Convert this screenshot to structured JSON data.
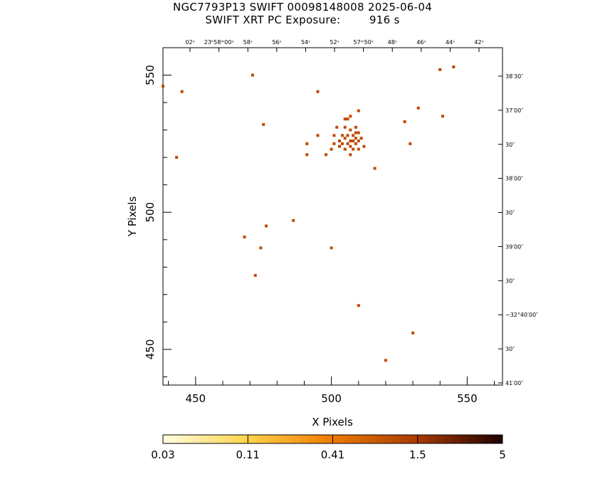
{
  "header": {
    "title_line1": "NGC7793P13 SWIFT 00098148008 2025-06-04",
    "title_line2": "SWIFT XRT PC Exposure:        916 s"
  },
  "chart_data": {
    "type": "scatter",
    "xlabel": "X Pixels",
    "ylabel": "Y Pixels",
    "xlim": [
      438,
      563
    ],
    "ylim": [
      437,
      560
    ],
    "x_ticks": [
      450,
      500,
      550
    ],
    "y_ticks": [
      450,
      500,
      550
    ],
    "ra_labels": [
      "02ˢ",
      "23ʰ58ᵐ00ˢ",
      "58ˢ",
      "56ˢ",
      "54ˢ",
      "52ˢ",
      "57ᵐ50ˢ",
      "48ˢ",
      "46ˢ",
      "44ˢ",
      "42ˢ"
    ],
    "dec_labels": [
      "38′30″",
      "37′00″",
      "30″",
      "38′00″",
      "30″",
      "39′00″",
      "30″",
      "−32°40′00″",
      "30″",
      "41′00″"
    ],
    "colorbar": {
      "tick_labels": [
        "0.03",
        "0.11",
        "0.41",
        "1.5",
        "5"
      ],
      "colors": [
        "#ffffe0",
        "#ffd24a",
        "#ee7a00",
        "#a83a00",
        "#1e0000"
      ]
    },
    "point_color": "#c04a00",
    "points": [
      [
        438,
        546
      ],
      [
        445,
        544
      ],
      [
        443,
        520
      ],
      [
        471,
        550
      ],
      [
        475,
        532
      ],
      [
        495,
        544
      ],
      [
        491,
        525
      ],
      [
        491,
        521
      ],
      [
        495,
        528
      ],
      [
        498,
        521
      ],
      [
        500,
        523
      ],
      [
        501,
        528
      ],
      [
        502,
        531
      ],
      [
        503,
        524
      ],
      [
        504,
        528
      ],
      [
        505,
        531
      ],
      [
        505,
        534
      ],
      [
        506,
        534
      ],
      [
        507,
        530
      ],
      [
        507,
        535
      ],
      [
        503,
        526
      ],
      [
        504,
        525
      ],
      [
        505,
        527
      ],
      [
        506,
        525
      ],
      [
        507,
        526
      ],
      [
        508,
        526
      ],
      [
        509,
        527
      ],
      [
        510,
        526
      ],
      [
        506,
        528
      ],
      [
        508,
        528
      ],
      [
        509,
        529
      ],
      [
        510,
        529
      ],
      [
        507,
        524
      ],
      [
        508,
        523
      ],
      [
        509,
        525
      ],
      [
        510,
        523
      ],
      [
        511,
        527
      ],
      [
        512,
        524
      ],
      [
        507,
        521
      ],
      [
        509,
        531
      ],
      [
        510,
        537
      ],
      [
        505,
        523
      ],
      [
        501,
        525
      ],
      [
        516,
        516
      ],
      [
        527,
        533
      ],
      [
        529,
        525
      ],
      [
        532,
        538
      ],
      [
        540,
        552
      ],
      [
        541,
        535
      ],
      [
        545,
        553
      ],
      [
        468,
        491
      ],
      [
        474,
        487
      ],
      [
        476,
        495
      ],
      [
        486,
        497
      ],
      [
        500,
        487
      ],
      [
        472,
        477
      ],
      [
        510,
        466
      ],
      [
        530,
        456
      ],
      [
        520,
        446
      ]
    ]
  }
}
